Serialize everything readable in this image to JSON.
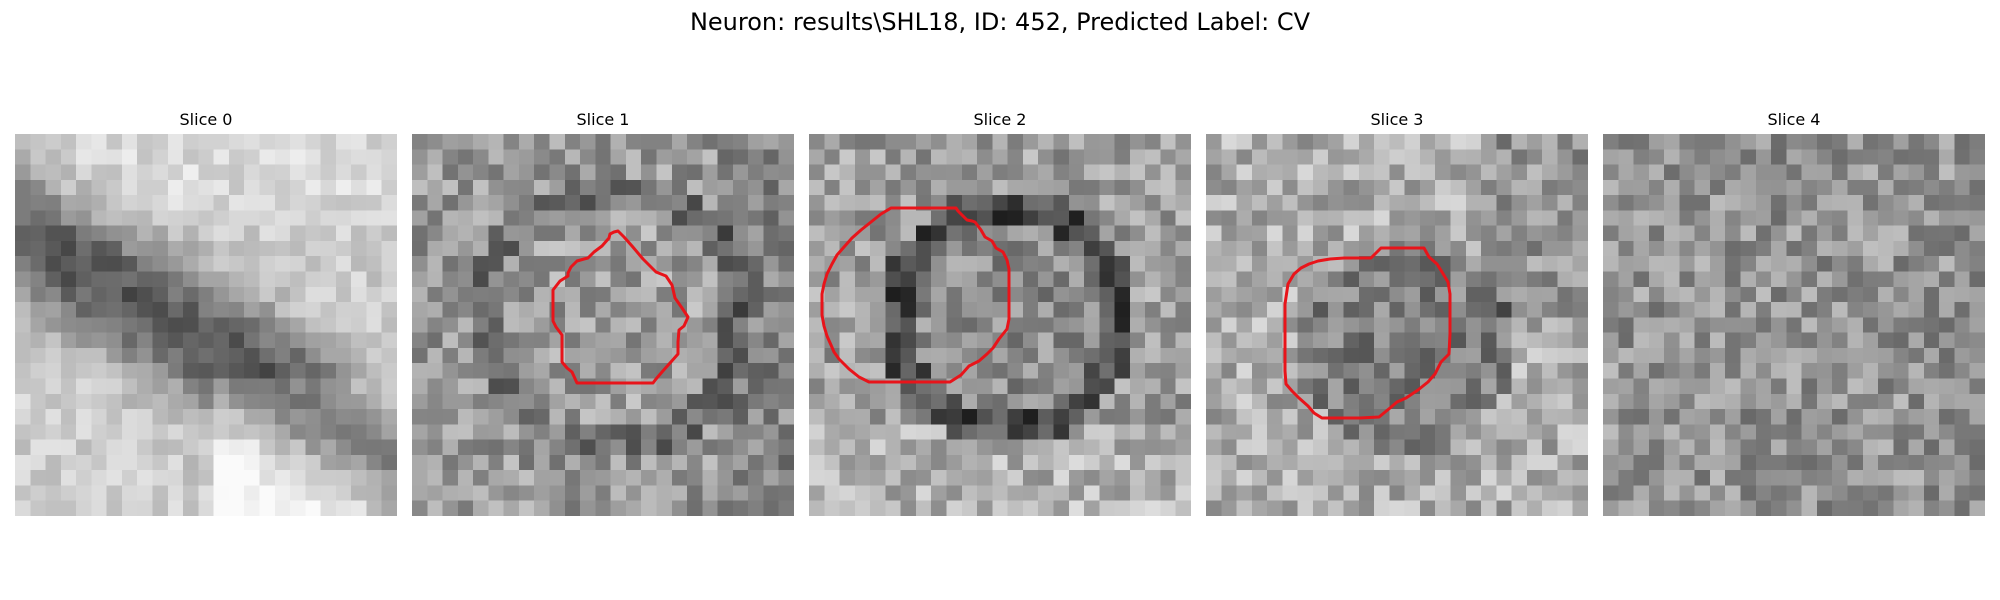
{
  "figure": {
    "title": "Neuron: results\\SHL18, ID: 452, Predicted Label: CV"
  },
  "slices": [
    {
      "label": "Slice 0",
      "has_contour": false,
      "seed": 11,
      "mode": "bands"
    },
    {
      "label": "Slice 1",
      "has_contour": true,
      "seed": 23,
      "mode": "cell_mid"
    },
    {
      "label": "Slice 2",
      "has_contour": true,
      "seed": 37,
      "mode": "cell_ring"
    },
    {
      "label": "Slice 3",
      "has_contour": true,
      "seed": 41,
      "mode": "cell_faint"
    },
    {
      "label": "Slice 4",
      "has_contour": false,
      "seed": 53,
      "mode": "noise"
    }
  ],
  "colors": {
    "contour": "#e8141a"
  }
}
